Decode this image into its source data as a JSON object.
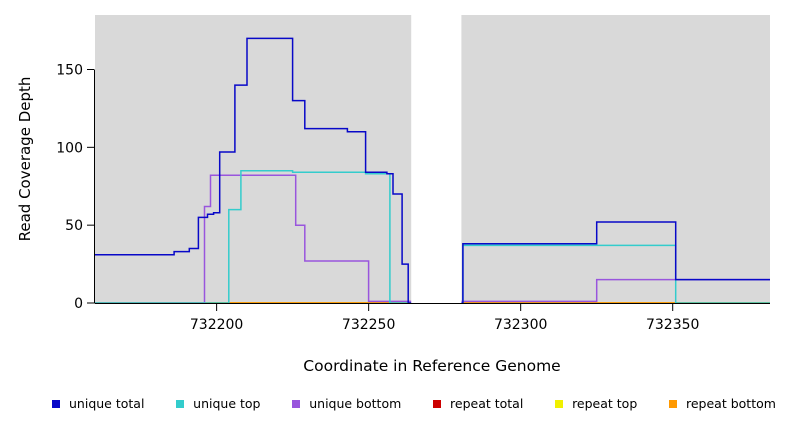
{
  "chart_data": {
    "type": "line",
    "subtype": "step-coverage",
    "title": "",
    "xlabel": "Coordinate in Reference Genome",
    "ylabel": "Read Coverage Depth",
    "xlim": [
      732160,
      732382
    ],
    "ylim": [
      0,
      185
    ],
    "x_ticks": [
      732200,
      732250,
      732300,
      732350
    ],
    "y_ticks": [
      0,
      50,
      100,
      150
    ],
    "grid": false,
    "legend_position": "bottom",
    "panel_background": "#d9d9d9",
    "gap_region": {
      "x_start": 732264,
      "x_end": 732280.5
    },
    "series": [
      {
        "name": "repeat total",
        "color": "#cc0000",
        "steps": [
          [
            732160,
            0
          ],
          [
            732382,
            0
          ]
        ]
      },
      {
        "name": "repeat top",
        "color": "#f0f000",
        "steps": [
          [
            732160,
            0
          ],
          [
            732382,
            0
          ]
        ]
      },
      {
        "name": "repeat bottom",
        "color": "#ff9900",
        "steps": [
          [
            732160,
            0
          ],
          [
            732382,
            0
          ]
        ]
      },
      {
        "name": "unique bottom",
        "color": "#9955dd",
        "steps": [
          [
            732160,
            0
          ],
          [
            732196,
            62
          ],
          [
            732198,
            82
          ],
          [
            732226,
            50
          ],
          [
            732229,
            27
          ],
          [
            732250,
            1
          ],
          [
            732325,
            15
          ],
          [
            732382,
            15
          ]
        ]
      },
      {
        "name": "unique top",
        "color": "#33cccc",
        "steps": [
          [
            732160,
            0
          ],
          [
            732204,
            60
          ],
          [
            732208,
            85
          ],
          [
            732225,
            84
          ],
          [
            732249,
            83
          ],
          [
            732257,
            0
          ],
          [
            732281,
            37
          ],
          [
            732351,
            0
          ],
          [
            732382,
            0
          ]
        ]
      },
      {
        "name": "unique total",
        "color": "#0808c8",
        "steps": [
          [
            732160,
            31
          ],
          [
            732186,
            33
          ],
          [
            732191,
            35
          ],
          [
            732194,
            55
          ],
          [
            732197,
            57
          ],
          [
            732199,
            58
          ],
          [
            732201,
            97
          ],
          [
            732206,
            140
          ],
          [
            732210,
            170
          ],
          [
            732225,
            130
          ],
          [
            732229,
            112
          ],
          [
            732243,
            110
          ],
          [
            732249,
            84
          ],
          [
            732256,
            83
          ],
          [
            732258,
            70
          ],
          [
            732261,
            25
          ],
          [
            732263,
            0
          ],
          [
            732281,
            38
          ],
          [
            732325,
            52
          ],
          [
            732351,
            15
          ],
          [
            732382,
            15
          ]
        ]
      }
    ],
    "legend": [
      {
        "label": "unique total",
        "color": "#0808c8"
      },
      {
        "label": "unique top",
        "color": "#33cccc"
      },
      {
        "label": "unique bottom",
        "color": "#9955dd"
      },
      {
        "label": "repeat total",
        "color": "#cc0000"
      },
      {
        "label": "repeat top",
        "color": "#f0f000"
      },
      {
        "label": "repeat bottom",
        "color": "#ff9900"
      }
    ]
  }
}
